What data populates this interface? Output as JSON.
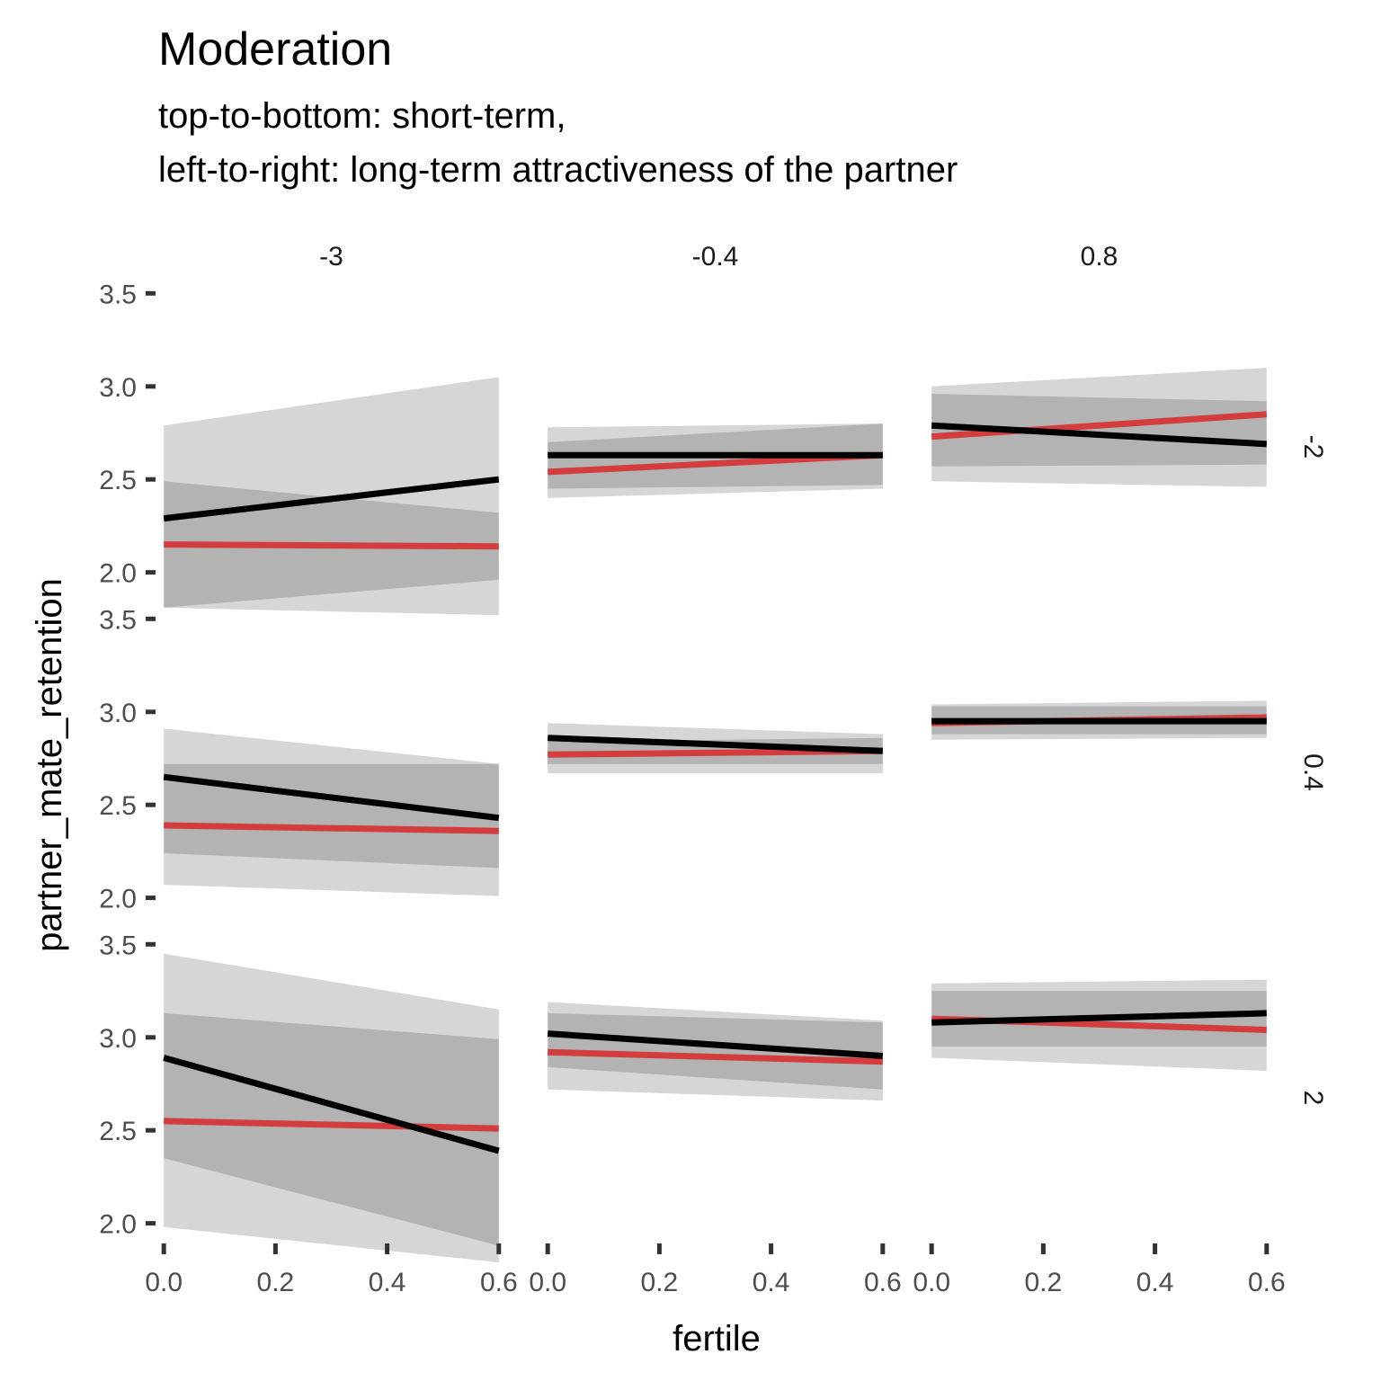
{
  "chart_data": {
    "type": "line",
    "title": "Moderation",
    "subtitle": [
      "top-to-bottom: short-term,",
      "left-to-right: long-term attractiveness of the partner"
    ],
    "xlabel": "fertile",
    "ylabel": "partner_mate_retention",
    "xlim": [
      -0.01,
      0.61
    ],
    "ylim": [
      1.8,
      3.55
    ],
    "xticks": [
      0.0,
      0.2,
      0.4,
      0.6
    ],
    "xtick_labels": [
      "0.0",
      "0.2",
      "0.4",
      "0.6"
    ],
    "yticks": [
      2.0,
      2.5,
      3.0,
      3.5
    ],
    "ytick_labels": [
      "2.0",
      "2.5",
      "3.0",
      "3.5"
    ],
    "col_facets": [
      "-3",
      "-0.4",
      "0.8"
    ],
    "row_facets": [
      "-2",
      "0.4",
      "2"
    ],
    "grid": false,
    "legend": "none",
    "colors": {
      "red": "#d43d3d",
      "black": "#000000",
      "band_light": "#d6d6d6",
      "band_dark": "#bdbdbd"
    },
    "panels": [
      {
        "row": 0,
        "col": 0,
        "red": {
          "x": [
            0,
            0.6
          ],
          "y": [
            2.15,
            2.14
          ],
          "lower": [
            1.81,
            1.96
          ],
          "upper": [
            2.49,
            2.32
          ]
        },
        "black": {
          "x": [
            0,
            0.6
          ],
          "y": [
            2.29,
            2.5
          ],
          "lower": [
            1.81,
            1.77
          ],
          "upper": [
            2.79,
            3.05
          ]
        }
      },
      {
        "row": 0,
        "col": 1,
        "red": {
          "x": [
            0,
            0.6
          ],
          "y": [
            2.54,
            2.63
          ],
          "lower": [
            2.45,
            2.47
          ],
          "upper": [
            2.7,
            2.8
          ]
        },
        "black": {
          "x": [
            0,
            0.6
          ],
          "y": [
            2.63,
            2.63
          ],
          "lower": [
            2.4,
            2.45
          ],
          "upper": [
            2.78,
            2.8
          ]
        }
      },
      {
        "row": 0,
        "col": 2,
        "red": {
          "x": [
            0,
            0.6
          ],
          "y": [
            2.73,
            2.85
          ],
          "lower": [
            2.57,
            2.58
          ],
          "upper": [
            2.96,
            2.92
          ]
        },
        "black": {
          "x": [
            0,
            0.6
          ],
          "y": [
            2.79,
            2.69
          ],
          "lower": [
            2.49,
            2.46
          ],
          "upper": [
            3.0,
            3.1
          ]
        }
      },
      {
        "row": 1,
        "col": 0,
        "red": {
          "x": [
            0,
            0.6
          ],
          "y": [
            2.39,
            2.36
          ],
          "lower": [
            2.24,
            2.16
          ],
          "upper": [
            2.72,
            2.72
          ]
        },
        "black": {
          "x": [
            0,
            0.6
          ],
          "y": [
            2.65,
            2.43
          ],
          "lower": [
            2.07,
            2.01
          ],
          "upper": [
            2.91,
            2.72
          ]
        }
      },
      {
        "row": 1,
        "col": 1,
        "red": {
          "x": [
            0,
            0.6
          ],
          "y": [
            2.77,
            2.79
          ],
          "lower": [
            2.72,
            2.72
          ],
          "upper": [
            2.84,
            2.86
          ]
        },
        "black": {
          "x": [
            0,
            0.6
          ],
          "y": [
            2.86,
            2.79
          ],
          "lower": [
            2.67,
            2.67
          ],
          "upper": [
            2.94,
            2.88
          ]
        }
      },
      {
        "row": 1,
        "col": 2,
        "red": {
          "x": [
            0,
            0.6
          ],
          "y": [
            2.94,
            2.97
          ],
          "lower": [
            2.88,
            2.88
          ],
          "upper": [
            3.03,
            3.03
          ]
        },
        "black": {
          "x": [
            0,
            0.6
          ],
          "y": [
            2.95,
            2.95
          ],
          "lower": [
            2.85,
            2.86
          ],
          "upper": [
            3.04,
            3.06
          ]
        }
      },
      {
        "row": 2,
        "col": 0,
        "red": {
          "x": [
            0,
            0.6
          ],
          "y": [
            2.55,
            2.51
          ],
          "lower": [
            2.35,
            1.88
          ],
          "upper": [
            3.13,
            2.99
          ]
        },
        "black": {
          "x": [
            0,
            0.6
          ],
          "y": [
            2.89,
            2.39
          ],
          "lower": [
            1.98,
            1.79
          ],
          "upper": [
            3.45,
            3.15
          ]
        }
      },
      {
        "row": 2,
        "col": 1,
        "red": {
          "x": [
            0,
            0.6
          ],
          "y": [
            2.92,
            2.87
          ],
          "lower": [
            2.84,
            2.72
          ],
          "upper": [
            3.13,
            3.08
          ]
        },
        "black": {
          "x": [
            0,
            0.6
          ],
          "y": [
            3.02,
            2.9
          ],
          "lower": [
            2.72,
            2.66
          ],
          "upper": [
            3.19,
            3.09
          ]
        }
      },
      {
        "row": 2,
        "col": 2,
        "red": {
          "x": [
            0,
            0.6
          ],
          "y": [
            3.1,
            3.04
          ],
          "lower": [
            2.95,
            2.95
          ],
          "upper": [
            3.25,
            3.25
          ]
        },
        "black": {
          "x": [
            0,
            0.6
          ],
          "y": [
            3.08,
            3.13
          ],
          "lower": [
            2.89,
            2.82
          ],
          "upper": [
            3.29,
            3.31
          ]
        }
      }
    ]
  }
}
